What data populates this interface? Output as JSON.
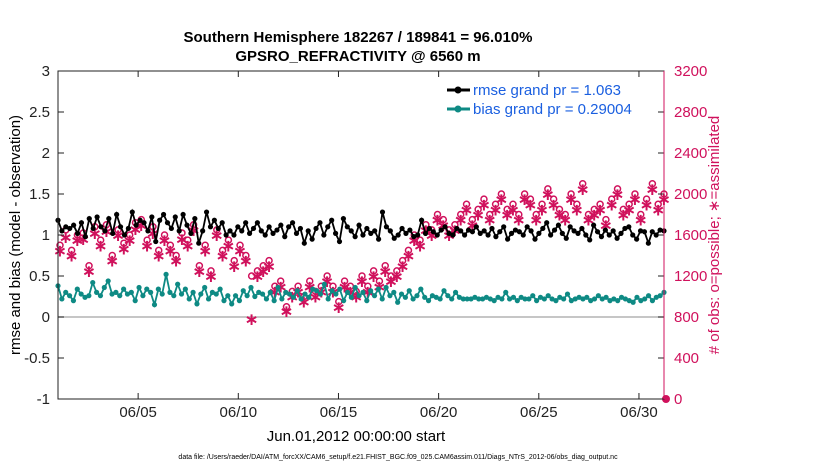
{
  "chart_data": {
    "type": "line",
    "title_line1": "Southern Hemisphere 182267 / 189841 = 96.010%",
    "title_line2": "GPSRO_REFRACTIVITY @ 6560 m",
    "xlabel": "Jun.01,2012 00:00:00 start",
    "ylabel_left": "rmse and bias (model - observation)",
    "ylabel_right": "# of obs: o=possible; ∗=assimilated",
    "footer": "data file: /Users/raeder/DAI/ATM_forcXX/CAM6_setup/f.e21.FHIST_BGC.f09_025.CAM6assim.011/Diags_NTrS_2012-06/obs_diag_output.nc",
    "x_tick_labels": [
      "06/05",
      "06/10",
      "06/15",
      "06/20",
      "06/25",
      "06/30"
    ],
    "x_tick_days": [
      5,
      10,
      15,
      20,
      25,
      30
    ],
    "xlim_days": [
      1.0,
      31.25
    ],
    "ylim_left": [
      -1,
      3
    ],
    "y_left_ticks": [
      "-1",
      "-0.5",
      "0",
      "0.5",
      "1",
      "1.5",
      "2",
      "2.5",
      "3"
    ],
    "ylim_right": [
      0,
      3200
    ],
    "y_right_ticks": [
      "0",
      "400",
      "800",
      "1200",
      "1600",
      "2000",
      "2400",
      "2800",
      "3200"
    ],
    "grid": false,
    "legend_position": "top-right",
    "colors": {
      "rmse": "#000000",
      "bias": "#0e8a84",
      "obs": "#d0115c",
      "zero_line": "#b4b4b4"
    },
    "series": [
      {
        "name": "rmse grand pr = 1.063",
        "key": "rmse",
        "values": [
          1.18,
          1.05,
          1.1,
          1.08,
          1.12,
          1.02,
          1.15,
          0.98,
          1.2,
          1.08,
          1.22,
          1.1,
          1.05,
          1.2,
          1.02,
          1.25,
          1.1,
          1.0,
          1.08,
          1.28,
          1.12,
          1.18,
          1.15,
          1.05,
          1.22,
          0.92,
          1.18,
          1.25,
          1.15,
          1.08,
          1.22,
          1.05,
          1.25,
          1.12,
          1.02,
          1.2,
          0.9,
          1.05,
          1.28,
          1.1,
          1.18,
          1.08,
          1.15,
          1.0,
          1.05,
          1.0,
          1.1,
          1.05,
          1.15,
          1.02,
          1.08,
          1.15,
          1.05,
          1.0,
          1.1,
          1.02,
          1.06,
          1.12,
          0.98,
          1.1,
          1.15,
          1.02,
          1.08,
          0.9,
          1.05,
          0.95,
          1.08,
          1.15,
          1.0,
          1.1,
          1.18,
          1.02,
          0.92,
          1.2,
          1.1,
          1.05,
          0.98,
          1.12,
          1.0,
          1.08,
          1.02,
          1.05,
          0.95,
          1.28,
          1.1,
          1.05,
          0.96,
          1.0,
          1.08,
          1.02,
          1.06,
          0.98,
          1.0,
          1.18,
          1.02,
          1.08,
          1.04,
          1.0,
          1.06,
          1.1,
          1.02,
          1.0,
          1.08,
          1.05,
          1.0,
          1.06,
          1.04,
          1.1,
          1.02,
          1.05,
          1.0,
          1.08,
          0.98,
          1.04,
          1.1,
          0.95,
          1.02,
          1.06,
          1.04,
          1.0,
          1.1,
          1.05,
          0.95,
          1.02,
          1.08,
          1.15,
          1.0,
          1.06,
          1.12,
          1.02,
          0.96,
          1.1,
          1.05,
          1.02,
          1.08,
          1.0,
          0.94,
          1.12,
          1.04,
          0.98,
          1.06,
          1.0,
          1.05,
          0.96,
          1.02,
          1.08,
          1.1,
          1.0,
          0.95,
          1.05,
          1.04,
          0.9,
          1.04,
          1.0,
          1.06,
          1.05
        ]
      },
      {
        "name": "bias grand pr = 0.29004",
        "key": "bias",
        "values": [
          0.38,
          0.22,
          0.3,
          0.26,
          0.2,
          0.34,
          0.28,
          0.24,
          0.26,
          0.42,
          0.3,
          0.26,
          0.36,
          0.44,
          0.28,
          0.3,
          0.26,
          0.34,
          0.28,
          0.3,
          0.2,
          0.36,
          0.26,
          0.34,
          0.3,
          0.15,
          0.34,
          0.28,
          0.52,
          0.3,
          0.26,
          0.4,
          0.28,
          0.34,
          0.22,
          0.3,
          0.16,
          0.28,
          0.36,
          0.22,
          0.3,
          0.28,
          0.34,
          0.2,
          0.26,
          0.16,
          0.26,
          0.2,
          0.32,
          0.26,
          0.36,
          0.25,
          0.3,
          0.28,
          0.22,
          0.3,
          0.2,
          0.36,
          0.22,
          0.3,
          0.28,
          0.24,
          0.32,
          0.22,
          0.28,
          0.24,
          0.34,
          0.32,
          0.28,
          0.4,
          0.22,
          0.32,
          0.28,
          0.34,
          0.2,
          0.3,
          0.24,
          0.36,
          0.26,
          0.3,
          0.2,
          0.32,
          0.26,
          0.34,
          0.22,
          0.36,
          0.26,
          0.3,
          0.18,
          0.28,
          0.24,
          0.32,
          0.22,
          0.26,
          0.34,
          0.24,
          0.2,
          0.26,
          0.24,
          0.22,
          0.32,
          0.26,
          0.22,
          0.3,
          0.24,
          0.22,
          0.22,
          0.22,
          0.24,
          0.22,
          0.22,
          0.24,
          0.22,
          0.2,
          0.24,
          0.22,
          0.3,
          0.22,
          0.24,
          0.2,
          0.24,
          0.22,
          0.22,
          0.26,
          0.2,
          0.24,
          0.22,
          0.26,
          0.22,
          0.2,
          0.24,
          0.22,
          0.28,
          0.2,
          0.22,
          0.24,
          0.22,
          0.24,
          0.2,
          0.22,
          0.26,
          0.22,
          0.24,
          0.2,
          0.22,
          0.2,
          0.24,
          0.22,
          0.2,
          0.18,
          0.24,
          0.2,
          0.22,
          0.26,
          0.2,
          0.24,
          0.26,
          0.3
        ]
      },
      {
        "name": "possible",
        "key": "possible",
        "values": [
          1500,
          1650,
          1450,
          1600,
          1620,
          1300,
          1680,
          1550,
          1700,
          1400,
          1650,
          1520,
          1600,
          1720,
          1750,
          1550,
          1680,
          1450,
          1600,
          1500,
          1400,
          1620,
          1550,
          1700,
          1300,
          1500,
          1250,
          1650,
          1450,
          1550,
          1350,
          1500,
          1400,
          1200,
          1250,
          1300,
          1350,
          1100,
          1150,
          900,
          1050,
          1100,
          1000,
          1150,
          1050,
          1100,
          1200,
          1100,
          950,
          1150,
          1100,
          1050,
          1200,
          1100,
          1250,
          1150,
          1300,
          1200,
          1250,
          1350,
          1450,
          1600,
          1550,
          1700,
          1650,
          1800,
          1750,
          1650,
          1700,
          1800,
          1900,
          1750,
          1850,
          1950,
          1800,
          1900,
          2000,
          1850,
          1900,
          1800,
          2000,
          1950,
          1800,
          1900,
          2050,
          1950,
          1850,
          1800,
          2000,
          1900,
          2100,
          1800,
          1850,
          1900,
          1750,
          1950,
          2050,
          1850,
          1900,
          2000,
          1800,
          1950,
          2100,
          1900,
          2000
        ]
      },
      {
        "name": "assimilated",
        "key": "assimilated",
        "values": [
          1450,
          1580,
          1400,
          1550,
          1560,
          1250,
          1620,
          1500,
          1640,
          1350,
          1600,
          1470,
          1550,
          1660,
          1700,
          1500,
          1620,
          1400,
          1550,
          1450,
          1350,
          1560,
          1500,
          1650,
          1250,
          1450,
          1200,
          1600,
          1400,
          1500,
          1300,
          1450,
          1350,
          780,
          1200,
          1250,
          1300,
          1050,
          1100,
          860,
          1000,
          1050,
          950,
          1100,
          1000,
          1050,
          1150,
          1050,
          900,
          1100,
          1050,
          1000,
          1150,
          1050,
          1200,
          1100,
          1250,
          1150,
          1200,
          1300,
          1400,
          1550,
          1500,
          1650,
          1600,
          1750,
          1700,
          1600,
          1650,
          1750,
          1850,
          1700,
          1800,
          1900,
          1750,
          1850,
          1950,
          1800,
          1850,
          1750,
          1950,
          1900,
          1750,
          1850,
          2000,
          1900,
          1800,
          1750,
          1950,
          1850,
          2050,
          1750,
          1800,
          1850,
          1700,
          1900,
          2000,
          1800,
          1850,
          1950,
          1750,
          1900,
          2050,
          1850,
          1950
        ]
      }
    ]
  }
}
